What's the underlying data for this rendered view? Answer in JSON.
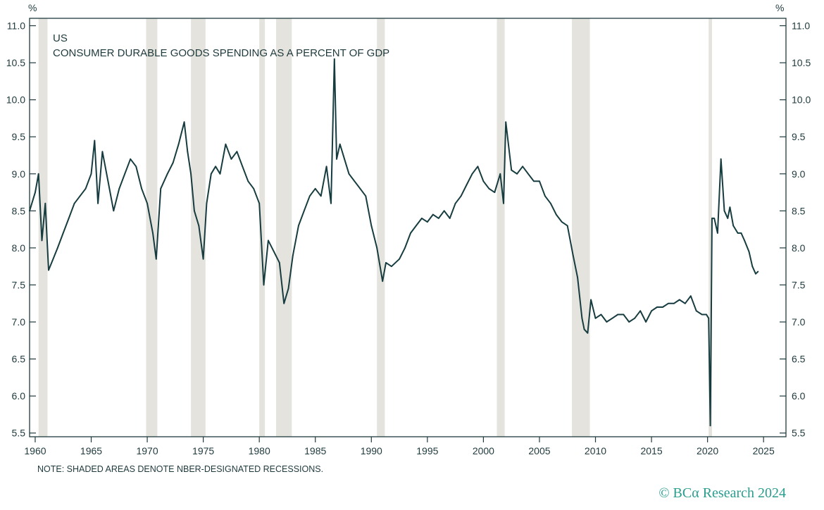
{
  "colors": {
    "line": "#173c40",
    "axis": "#1f3a3d",
    "recession": "#e4e3dd",
    "copyright": "#2a9d8f",
    "text": "#1f3a3d"
  },
  "note": "NOTE: SHADED AREAS DENOTE NBER-DESIGNATED RECESSIONS.",
  "copyright": "© BCα Research 2024",
  "chart_data": {
    "type": "line",
    "title": "US",
    "subtitle": "CONSUMER DURABLE GOODS SPENDING AS A PERCENT OF GDP",
    "ylabel_left": "%",
    "ylabel_right": "%",
    "xlabel": "",
    "xlim": [
      1959.5,
      2027.0
    ],
    "ylim": [
      5.45,
      11.1
    ],
    "x_ticks": [
      1960,
      1965,
      1970,
      1975,
      1980,
      1985,
      1990,
      1995,
      2000,
      2005,
      2010,
      2015,
      2020,
      2025
    ],
    "x_tick_labels": [
      "1960",
      "1965",
      "1970",
      "1975",
      "1980",
      "1985",
      "1990",
      "1995",
      "2000",
      "2005",
      "2010",
      "2015",
      "2020",
      "2025"
    ],
    "y_ticks": [
      5.5,
      6.0,
      6.5,
      7.0,
      7.5,
      8.0,
      8.5,
      9.0,
      9.5,
      10.0,
      10.5,
      11.0
    ],
    "y_tick_labels": [
      "5.5",
      "6.0",
      "6.5",
      "7.0",
      "7.5",
      "8.0",
      "8.5",
      "9.0",
      "9.5",
      "10.0",
      "10.5",
      "11.0"
    ],
    "grid": false,
    "recessions": [
      {
        "start": 1960.3,
        "end": 1961.1
      },
      {
        "start": 1969.9,
        "end": 1970.9
      },
      {
        "start": 1973.9,
        "end": 1975.2
      },
      {
        "start": 1980.0,
        "end": 1980.5
      },
      {
        "start": 1981.5,
        "end": 1982.9
      },
      {
        "start": 1990.5,
        "end": 1991.2
      },
      {
        "start": 2001.2,
        "end": 2001.9
      },
      {
        "start": 2007.9,
        "end": 2009.5
      },
      {
        "start": 2020.1,
        "end": 2020.4
      }
    ],
    "series": [
      {
        "name": "Consumer durable goods spending as a percent of GDP",
        "x": [
          1959.5,
          1960.0,
          1960.3,
          1960.6,
          1960.9,
          1961.2,
          1961.6,
          1962.0,
          1962.5,
          1963.0,
          1963.5,
          1964.0,
          1964.5,
          1965.0,
          1965.3,
          1965.6,
          1966.0,
          1966.5,
          1967.0,
          1967.5,
          1968.0,
          1968.5,
          1969.0,
          1969.5,
          1970.0,
          1970.5,
          1970.8,
          1971.2,
          1971.8,
          1972.3,
          1972.8,
          1973.3,
          1973.6,
          1973.9,
          1974.2,
          1974.6,
          1975.0,
          1975.3,
          1975.7,
          1976.1,
          1976.5,
          1977.0,
          1977.5,
          1978.0,
          1978.5,
          1979.0,
          1979.5,
          1980.0,
          1980.4,
          1980.8,
          1981.3,
          1981.8,
          1982.2,
          1982.6,
          1983.0,
          1983.5,
          1984.0,
          1984.5,
          1985.0,
          1985.5,
          1986.0,
          1986.4,
          1986.7,
          1986.9,
          1987.2,
          1987.6,
          1988.0,
          1988.5,
          1989.0,
          1989.5,
          1990.0,
          1990.5,
          1991.0,
          1991.3,
          1991.8,
          1992.5,
          1993.0,
          1993.5,
          1994.0,
          1994.5,
          1995.0,
          1995.5,
          1996.0,
          1996.5,
          1997.0,
          1997.5,
          1998.0,
          1998.5,
          1999.0,
          1999.5,
          2000.0,
          2000.5,
          2001.0,
          2001.5,
          2001.8,
          2002.0,
          2002.5,
          2003.0,
          2003.5,
          2004.0,
          2004.5,
          2005.0,
          2005.5,
          2006.0,
          2006.5,
          2007.0,
          2007.5,
          2008.0,
          2008.4,
          2008.8,
          2009.0,
          2009.3,
          2009.6,
          2010.0,
          2010.5,
          2011.0,
          2011.5,
          2012.0,
          2012.5,
          2013.0,
          2013.5,
          2014.0,
          2014.5,
          2015.0,
          2015.5,
          2016.0,
          2016.5,
          2017.0,
          2017.5,
          2018.0,
          2018.5,
          2019.0,
          2019.5,
          2019.9,
          2020.1,
          2020.25,
          2020.4,
          2020.6,
          2020.9,
          2021.2,
          2021.5,
          2021.8,
          2022.0,
          2022.3,
          2022.7,
          2023.0,
          2023.3,
          2023.7,
          2024.0,
          2024.3,
          2024.5
        ],
        "values": [
          8.5,
          8.75,
          9.0,
          8.1,
          8.6,
          7.7,
          7.85,
          8.0,
          8.2,
          8.4,
          8.6,
          8.7,
          8.8,
          9.0,
          9.45,
          8.6,
          9.3,
          8.9,
          8.5,
          8.8,
          9.0,
          9.2,
          9.1,
          8.8,
          8.6,
          8.2,
          7.85,
          8.8,
          9.0,
          9.15,
          9.4,
          9.7,
          9.3,
          9.0,
          8.5,
          8.3,
          7.85,
          8.6,
          9.0,
          9.1,
          9.0,
          9.4,
          9.2,
          9.3,
          9.1,
          8.9,
          8.8,
          8.6,
          7.5,
          8.1,
          7.95,
          7.8,
          7.25,
          7.45,
          7.9,
          8.3,
          8.5,
          8.7,
          8.8,
          8.7,
          9.1,
          8.6,
          10.55,
          9.2,
          9.4,
          9.2,
          9.0,
          8.9,
          8.8,
          8.7,
          8.3,
          8.0,
          7.55,
          7.8,
          7.75,
          7.85,
          8.0,
          8.2,
          8.3,
          8.4,
          8.35,
          8.45,
          8.4,
          8.5,
          8.4,
          8.6,
          8.7,
          8.85,
          9.0,
          9.1,
          8.9,
          8.8,
          8.75,
          9.0,
          8.6,
          9.7,
          9.05,
          9.0,
          9.1,
          9.0,
          8.9,
          8.9,
          8.7,
          8.6,
          8.45,
          8.35,
          8.3,
          7.9,
          7.6,
          7.05,
          6.9,
          6.85,
          7.3,
          7.05,
          7.1,
          7.0,
          7.05,
          7.1,
          7.1,
          7.0,
          7.05,
          7.15,
          7.0,
          7.15,
          7.2,
          7.2,
          7.25,
          7.25,
          7.3,
          7.25,
          7.35,
          7.15,
          7.1,
          7.1,
          7.05,
          5.6,
          8.4,
          8.4,
          8.2,
          9.2,
          8.5,
          8.4,
          8.55,
          8.3,
          8.2,
          8.2,
          8.1,
          7.95,
          7.75,
          7.65,
          7.68
        ]
      }
    ]
  }
}
